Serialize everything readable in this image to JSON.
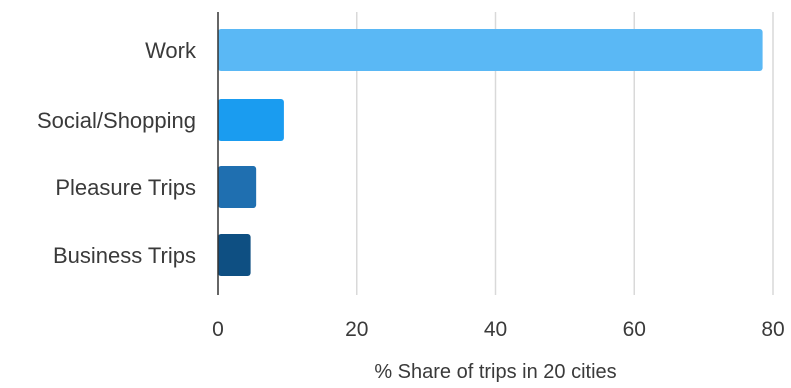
{
  "chart_data": {
    "type": "bar",
    "orientation": "horizontal",
    "categories": [
      "Work",
      "Social/Shopping",
      "Pleasure Trips",
      "Business Trips"
    ],
    "values": [
      78.5,
      9.5,
      5.5,
      4.7
    ],
    "bar_colors": [
      "#5ab8f5",
      "#1a9cf0",
      "#1f6fb0",
      "#0e4f82"
    ],
    "xlabel": "% Share of trips in 20 cities",
    "xlim": [
      0,
      80
    ],
    "xticks": [
      0,
      20,
      40,
      60,
      80
    ],
    "grid": "vertical"
  }
}
